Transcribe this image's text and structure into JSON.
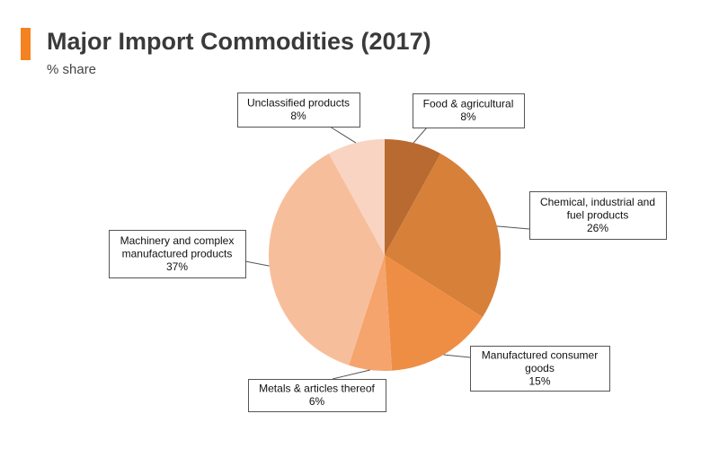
{
  "header": {
    "title": "Major Import Commodities (2017)",
    "subtitle": "% share"
  },
  "colors": {
    "accent": "#F58220",
    "leader": "#555555",
    "box_border": "#555555"
  },
  "chart_data": {
    "type": "pie",
    "title": "Major Import Commodities (2017)",
    "subtitle": "% share",
    "unit": "%",
    "start_angle_deg": 0,
    "direction": "clockwise",
    "slices": [
      {
        "key": "food",
        "label_lines": [
          "Food & agricultural"
        ],
        "value": 8,
        "value_label": "8%",
        "color": "#B86A30"
      },
      {
        "key": "chemical",
        "label_lines": [
          "Chemical, industrial and",
          "fuel products"
        ],
        "value": 26,
        "value_label": "26%",
        "color": "#D6803A"
      },
      {
        "key": "consumer",
        "label_lines": [
          "Manufactured consumer",
          "goods"
        ],
        "value": 15,
        "value_label": "15%",
        "color": "#EE8E44"
      },
      {
        "key": "metals",
        "label_lines": [
          "Metals & articles thereof"
        ],
        "value": 6,
        "value_label": "6%",
        "color": "#F4A46C"
      },
      {
        "key": "machinery",
        "label_lines": [
          "Machinery and complex",
          "manufactured products"
        ],
        "value": 37,
        "value_label": "37%",
        "color": "#F7BE9C"
      },
      {
        "key": "unclassified",
        "label_lines": [
          "Unclassified products"
        ],
        "value": 8,
        "value_label": "8%",
        "color": "#F9D4C2"
      }
    ]
  }
}
